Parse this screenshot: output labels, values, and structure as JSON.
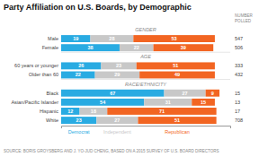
{
  "chart_data": {
    "type": "bar",
    "orientation": "horizontal",
    "stacked": true,
    "data_labels": true,
    "tick_labels": false,
    "legend": "bottom",
    "title": "Party Affiliation on U.S. Boards, by Demographic",
    "categories": [
      "Male",
      "Female",
      "60 years or younger",
      "Older than 60",
      "Black",
      "Asian/Pacific Islander",
      "Hispanic",
      "White"
    ],
    "series": [
      {
        "name": "Democrat",
        "color": "#29ABE2",
        "values": [
          19,
          38,
          26,
          22,
          67,
          54,
          12,
          23
        ]
      },
      {
        "name": "Independent",
        "color": "#C8C8C8",
        "values": [
          28,
          22,
          23,
          29,
          27,
          31,
          18,
          27
        ]
      },
      {
        "name": "Republican",
        "color": "#F26522",
        "values": [
          53,
          39,
          51,
          49,
          9,
          15,
          71,
          51
        ]
      }
    ],
    "n_polled": [
      547,
      506,
      333,
      432,
      15,
      13,
      17,
      708
    ],
    "annotations": [
      "GENDER",
      "AGE",
      "RACE/ETHNICITY",
      "NUMBER\nPOLLED",
      "SOURCE: BORIS GROYSBERG AND J. YO-JUD CHENG, BASED ON A 2015 SURVEY OF U.S. BOARD DIRECTORS"
    ],
    "xlim": [
      0,
      110
    ]
  }
}
